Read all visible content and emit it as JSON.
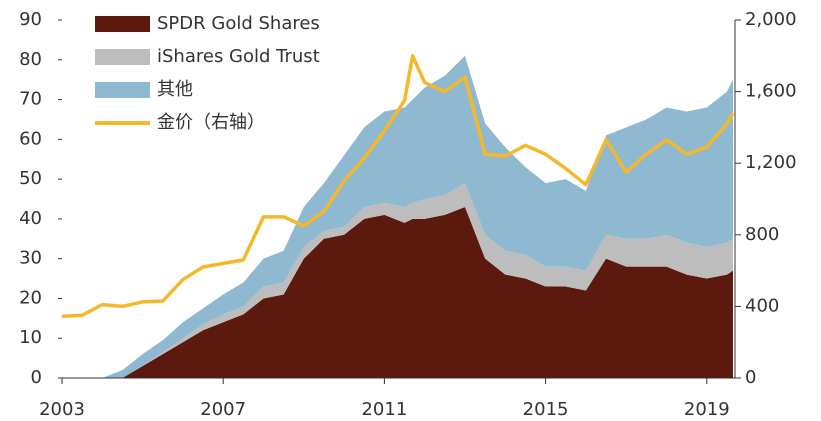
{
  "chart_data": {
    "type": "stacked_area_line",
    "x": [
      2003.0,
      2003.5,
      2004.0,
      2004.5,
      2005.0,
      2005.5,
      2006.0,
      2006.5,
      2007.0,
      2007.5,
      2008.0,
      2008.5,
      2009.0,
      2009.5,
      2010.0,
      2010.5,
      2011.0,
      2011.5,
      2011.7,
      2012.0,
      2012.5,
      2013.0,
      2013.5,
      2014.0,
      2014.5,
      2015.0,
      2015.5,
      2016.0,
      2016.5,
      2017.0,
      2017.5,
      2018.0,
      2018.5,
      2019.0,
      2019.5,
      2019.65
    ],
    "series": [
      {
        "name": "SPDR Gold Shares",
        "color": "#5c1a0e",
        "values": [
          0,
          0,
          0,
          0,
          3,
          6,
          9,
          12,
          14,
          16,
          20,
          21,
          30,
          35,
          36,
          40,
          41,
          39,
          40,
          40,
          41,
          43,
          30,
          26,
          25,
          23,
          23,
          22,
          30,
          28,
          28,
          28,
          26,
          25,
          26,
          27
        ]
      },
      {
        "name": "iShares Gold Trust",
        "color": "#bdbdbd",
        "values": [
          0,
          0,
          0,
          0,
          0,
          0.5,
          1,
          1.5,
          2,
          2,
          3,
          3,
          3,
          2,
          2,
          3,
          3,
          4,
          4,
          5,
          5,
          6,
          6,
          6,
          6,
          5,
          5,
          5,
          6,
          7,
          7,
          8,
          8,
          8,
          8,
          8
        ]
      },
      {
        "name": "其他",
        "color": "#8fb9d0",
        "values": [
          0,
          0,
          0,
          2,
          3,
          3,
          4,
          4,
          5,
          6,
          7,
          8,
          10,
          12,
          18,
          20,
          23,
          25,
          26,
          28,
          30,
          32,
          28,
          26,
          22,
          21,
          22,
          20,
          25,
          28,
          30,
          32,
          33,
          35,
          38,
          40
        ]
      },
      {
        "name": "金价（右轴）",
        "color": "#f6b82b",
        "axis": "y2",
        "values": [
          345,
          350,
          410,
          400,
          425,
          430,
          550,
          620,
          640,
          660,
          900,
          900,
          850,
          930,
          1100,
          1230,
          1380,
          1550,
          1800,
          1650,
          1600,
          1680,
          1250,
          1240,
          1300,
          1250,
          1170,
          1080,
          1330,
          1150,
          1250,
          1330,
          1250,
          1290,
          1420,
          1480
        ]
      }
    ],
    "xlim": [
      2003,
      2019.7
    ],
    "xticks": [
      2003,
      2007,
      2011,
      2015,
      2019
    ],
    "ylim": [
      0,
      90
    ],
    "yticks": [
      0,
      10,
      20,
      30,
      40,
      50,
      60,
      70,
      80,
      90
    ],
    "y2lim": [
      0,
      2000
    ],
    "y2ticks": [
      0,
      400,
      800,
      {
        "value": 1200,
        "label": "1,200"
      },
      {
        "value": 1600,
        "label": "1,600"
      },
      {
        "value": 2000,
        "label": "2,000"
      }
    ],
    "legend": "upper left"
  }
}
